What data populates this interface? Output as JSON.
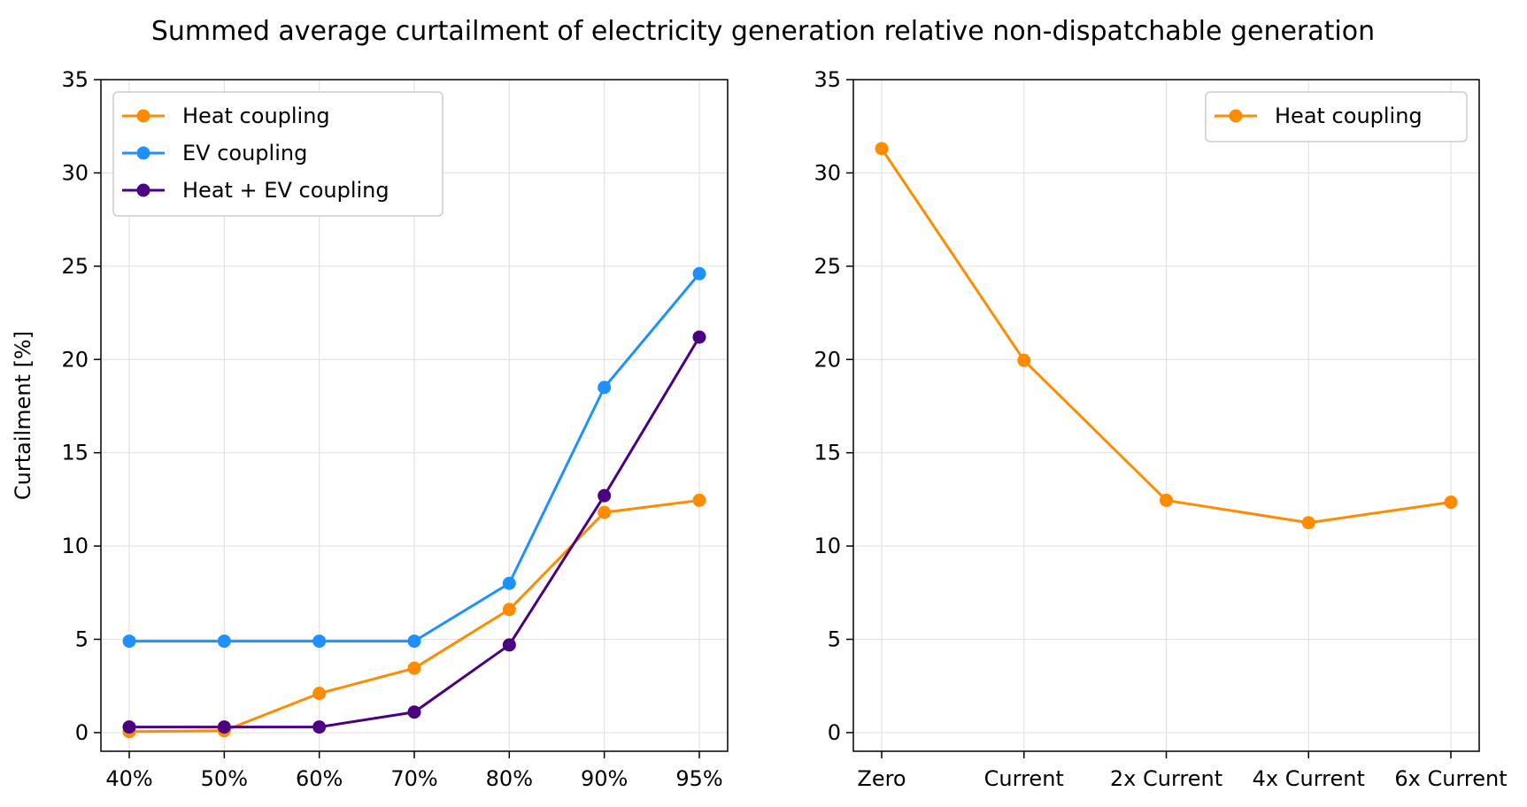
{
  "figure_title": "Summed average curtailment of electricity generation relative non-dispatchable generation",
  "chart_data": [
    {
      "type": "line",
      "title": "",
      "xlabel": "",
      "ylabel": "Curtailment [%]",
      "categories": [
        "40%",
        "50%",
        "60%",
        "70%",
        "80%",
        "90%",
        "95%"
      ],
      "ylim": [
        -1,
        35
      ],
      "yticks": [
        0,
        5,
        10,
        15,
        20,
        25,
        30,
        35
      ],
      "grid": true,
      "legend_position": "top-left",
      "series": [
        {
          "name": "Heat coupling",
          "color": "#ff8c00",
          "values": [
            0.05,
            0.1,
            2.1,
            3.45,
            6.6,
            11.8,
            12.45
          ]
        },
        {
          "name": "EV coupling",
          "color": "#1e90ff",
          "values": [
            4.9,
            4.9,
            4.9,
            4.9,
            8.0,
            18.5,
            24.6
          ]
        },
        {
          "name": "Heat + EV coupling",
          "color": "#4b0082",
          "values": [
            0.3,
            0.3,
            0.3,
            1.1,
            4.7,
            12.7,
            21.2
          ]
        }
      ]
    },
    {
      "type": "line",
      "title": "",
      "xlabel": "",
      "ylabel": "",
      "categories": [
        "Zero",
        "Current",
        "2x Current",
        "4x Current",
        "6x Current"
      ],
      "ylim": [
        -1,
        35
      ],
      "yticks": [
        0,
        5,
        10,
        15,
        20,
        25,
        30,
        35
      ],
      "grid": true,
      "legend_position": "top-right",
      "series": [
        {
          "name": "Heat coupling",
          "color": "#ff8c00",
          "values": [
            31.3,
            19.95,
            12.45,
            11.25,
            12.35
          ]
        }
      ]
    }
  ]
}
